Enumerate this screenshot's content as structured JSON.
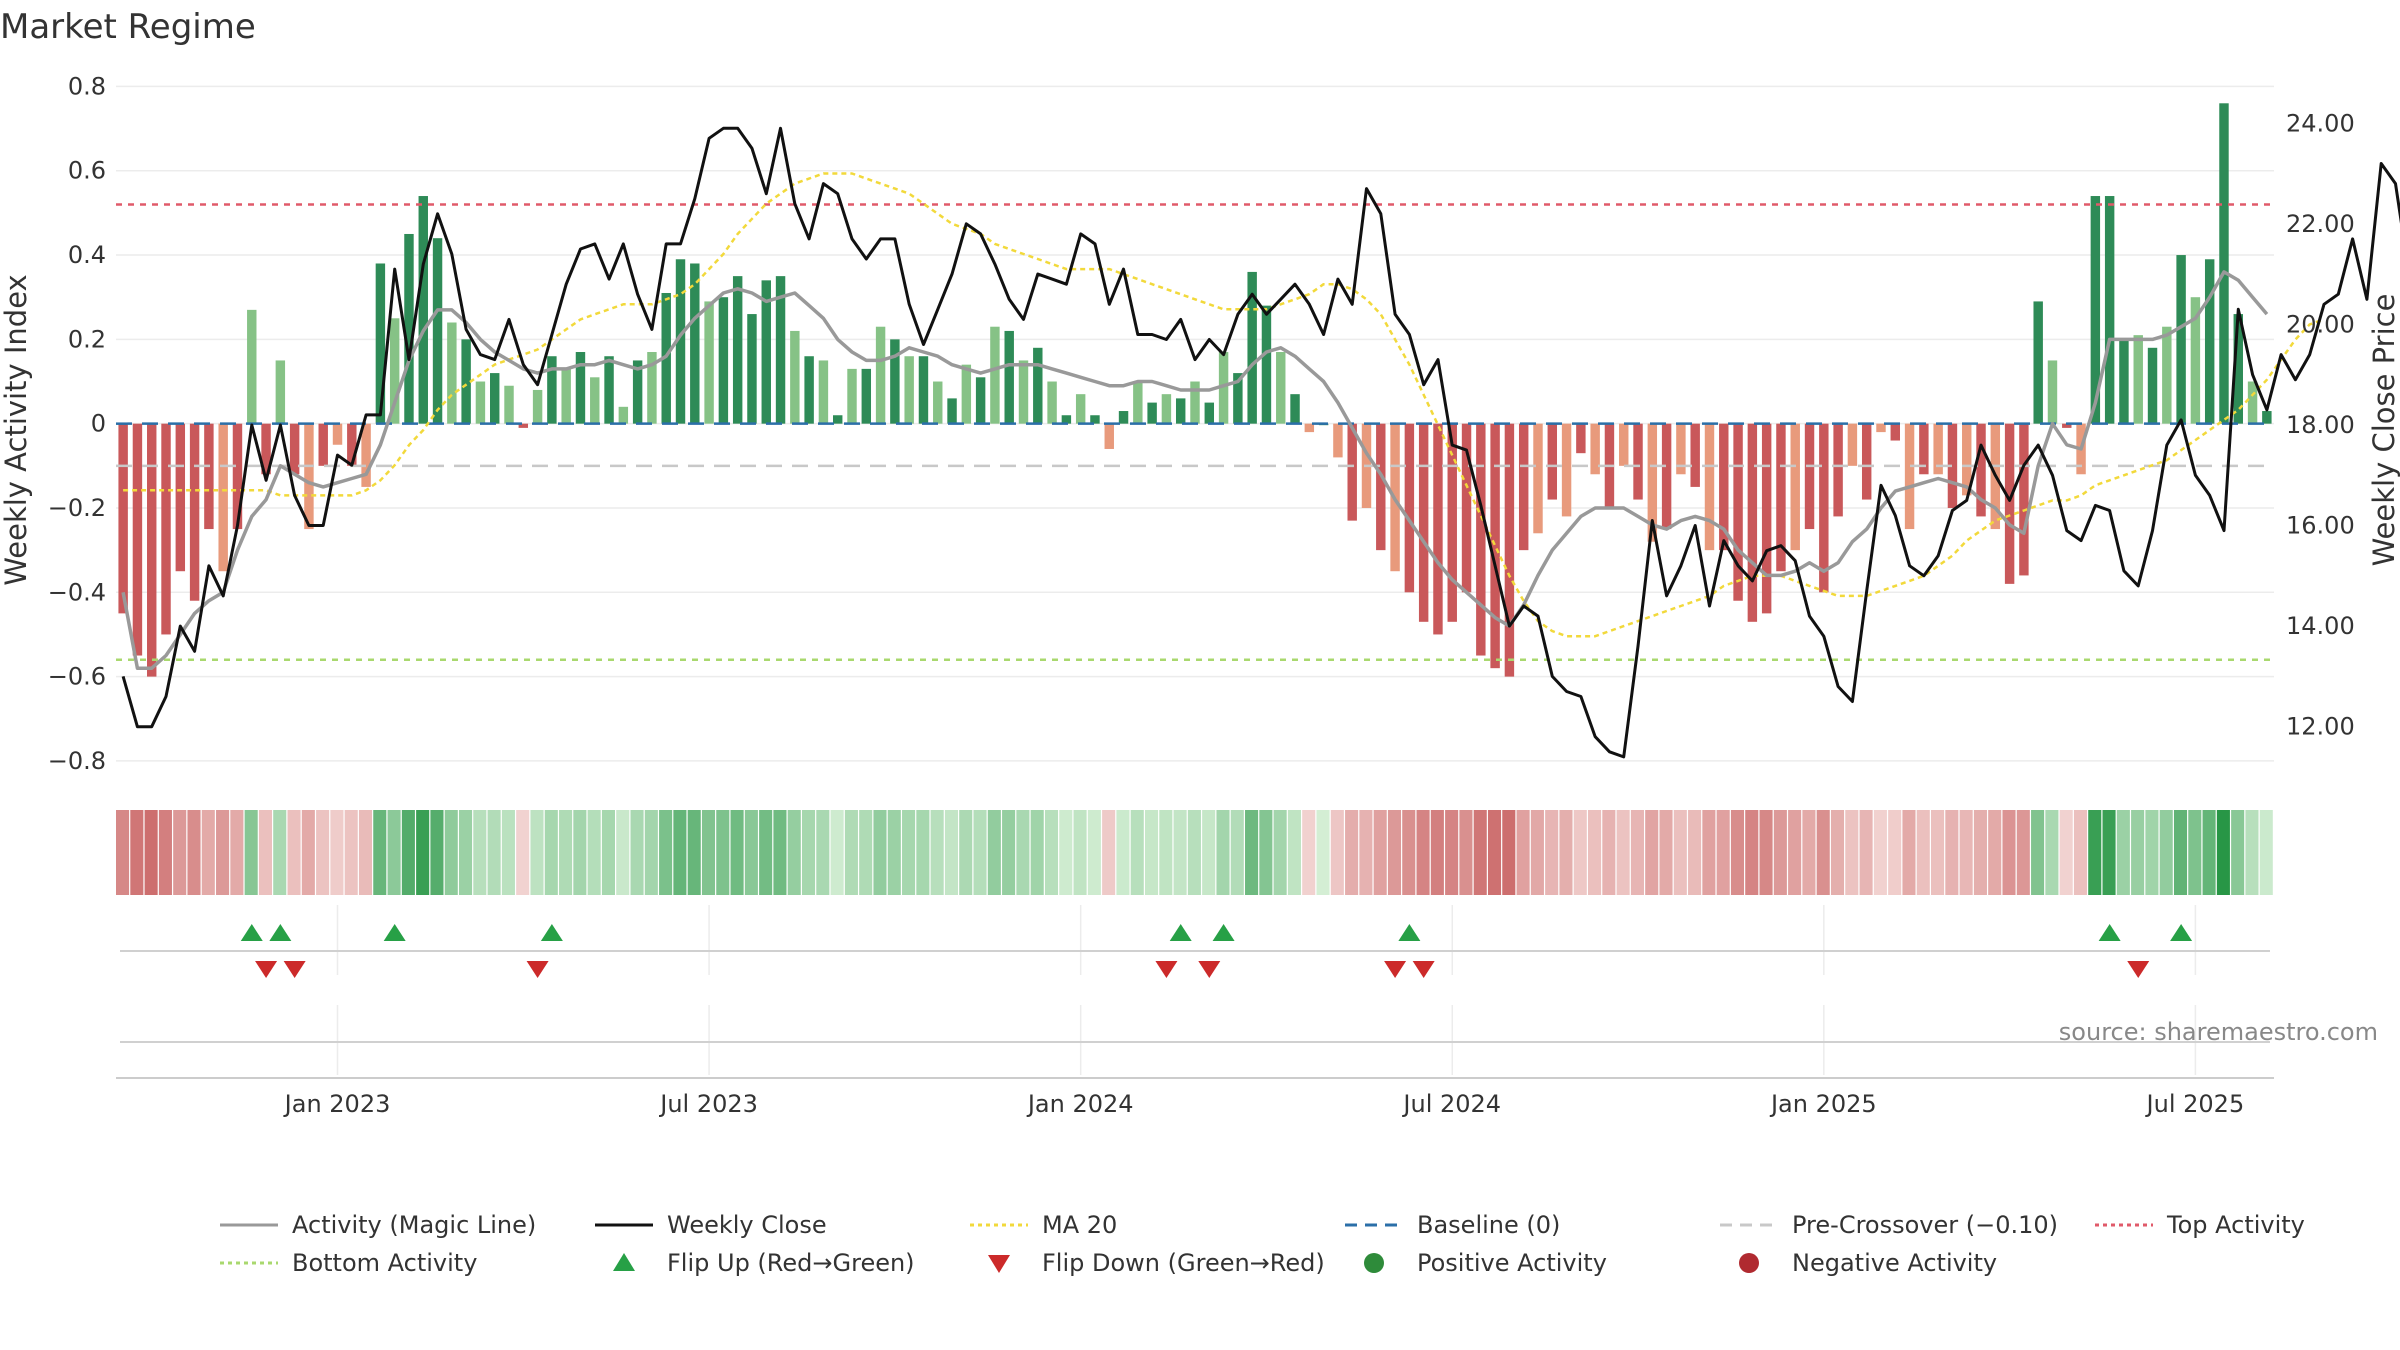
{
  "title": "Market Regime",
  "source": "source: sharemaestro.com",
  "colors": {
    "activity_line": "#999999",
    "close_line": "#111111",
    "ma20": "#f2d93b",
    "baseline": "#2b6fa8",
    "pre_crossover": "#c8c8c8",
    "top_activity": "#e05a6a",
    "bottom_activity": "#a9d86e",
    "pos_dark": "#2e8b57",
    "pos_light": "#86c286",
    "neg_dark": "#c9585a",
    "neg_light": "#e89a7c",
    "flip_up": "#27a046",
    "flip_down": "#cc2a2a",
    "positive_dot": "#2e8b3a",
    "negative_dot": "#b02a30",
    "grid": "#ececec"
  },
  "chart_data": {
    "type": "bar",
    "ylabel": "Weekly Activity Index",
    "y2label": "Weekly Close Price",
    "ylim": [
      -0.85,
      0.82
    ],
    "y2lim": [
      10.9,
      24.9
    ],
    "yticks": [
      {
        "v": 0.8,
        "label": "0.8"
      },
      {
        "v": 0.6,
        "label": "0.6"
      },
      {
        "v": 0.4,
        "label": "0.4"
      },
      {
        "v": 0.2,
        "label": "0.2"
      },
      {
        "v": 0,
        "label": "0"
      },
      {
        "v": -0.2,
        "label": "−0.2"
      },
      {
        "v": -0.4,
        "label": "−0.4"
      },
      {
        "v": -0.6,
        "label": "−0.6"
      },
      {
        "v": -0.8,
        "label": "−0.8"
      }
    ],
    "y2ticks": [
      {
        "v": 24,
        "label": "24.00"
      },
      {
        "v": 22,
        "label": "22.00"
      },
      {
        "v": 20,
        "label": "20.00"
      },
      {
        "v": 18,
        "label": "18.00"
      },
      {
        "v": 16,
        "label": "16.00"
      },
      {
        "v": 14,
        "label": "14.00"
      },
      {
        "v": 12,
        "label": "12.00"
      }
    ],
    "xticks": [
      "Jan 2023",
      "Jul 2023",
      "Jan 2024",
      "Jul 2024",
      "Jan 2025",
      "Jul 2025"
    ],
    "xtick_weeks": [
      15,
      41,
      67,
      93,
      119,
      145
    ],
    "activity": [
      -0.45,
      -0.55,
      -0.6,
      -0.5,
      -0.35,
      -0.42,
      -0.25,
      -0.35,
      -0.25,
      0.27,
      -0.12,
      0.15,
      -0.12,
      -0.25,
      -0.1,
      -0.05,
      -0.1,
      -0.15,
      0.38,
      0.25,
      0.45,
      0.54,
      0.44,
      0.24,
      0.2,
      0.1,
      0.12,
      0.09,
      -0.01,
      0.08,
      0.16,
      0.13,
      0.17,
      0.11,
      0.16,
      0.04,
      0.15,
      0.17,
      0.31,
      0.39,
      0.38,
      0.29,
      0.3,
      0.35,
      0.26,
      0.34,
      0.35,
      0.22,
      0.16,
      0.15,
      0.02,
      0.13,
      0.13,
      0.23,
      0.2,
      0.16,
      0.16,
      0.1,
      0.06,
      0.14,
      0.11,
      0.23,
      0.22,
      0.15,
      0.18,
      0.1,
      0.02,
      0.07,
      0.02,
      -0.06,
      0.03,
      0.1,
      0.05,
      0.07,
      0.06,
      0.1,
      0.05,
      0.17,
      0.12,
      0.36,
      0.28,
      0.17,
      0.07,
      -0.02,
      0.0,
      -0.08,
      -0.23,
      -0.2,
      -0.3,
      -0.35,
      -0.4,
      -0.47,
      -0.5,
      -0.47,
      -0.4,
      -0.55,
      -0.58,
      -0.6,
      -0.3,
      -0.26,
      -0.18,
      -0.22,
      -0.07,
      -0.12,
      -0.2,
      -0.1,
      -0.18,
      -0.28,
      -0.25,
      -0.12,
      -0.15,
      -0.3,
      -0.3,
      -0.42,
      -0.47,
      -0.45,
      -0.35,
      -0.3,
      -0.25,
      -0.4,
      -0.22,
      -0.1,
      -0.18,
      -0.02,
      -0.04,
      -0.25,
      -0.12,
      -0.12,
      -0.2,
      -0.17,
      -0.22,
      -0.25,
      -0.38,
      -0.36,
      0.29,
      0.15,
      -0.01,
      -0.12,
      0.54,
      0.54,
      0.2,
      0.21,
      0.18,
      0.23,
      0.4,
      0.3,
      0.39,
      0.76,
      0.26,
      0.1,
      0.03
    ],
    "magic_line": [
      -0.4,
      -0.58,
      -0.58,
      -0.55,
      -0.5,
      -0.45,
      -0.42,
      -0.4,
      -0.3,
      -0.22,
      -0.18,
      -0.1,
      -0.12,
      -0.14,
      -0.15,
      -0.14,
      -0.13,
      -0.12,
      -0.05,
      0.05,
      0.15,
      0.22,
      0.27,
      0.27,
      0.24,
      0.2,
      0.17,
      0.15,
      0.13,
      0.12,
      0.13,
      0.13,
      0.14,
      0.14,
      0.15,
      0.14,
      0.13,
      0.14,
      0.16,
      0.21,
      0.25,
      0.28,
      0.31,
      0.32,
      0.31,
      0.29,
      0.3,
      0.31,
      0.28,
      0.25,
      0.2,
      0.17,
      0.15,
      0.15,
      0.16,
      0.18,
      0.17,
      0.16,
      0.14,
      0.13,
      0.12,
      0.13,
      0.14,
      0.14,
      0.14,
      0.13,
      0.12,
      0.11,
      0.1,
      0.09,
      0.09,
      0.1,
      0.1,
      0.09,
      0.08,
      0.08,
      0.08,
      0.09,
      0.1,
      0.14,
      0.17,
      0.18,
      0.16,
      0.13,
      0.1,
      0.05,
      -0.01,
      -0.07,
      -0.12,
      -0.18,
      -0.23,
      -0.28,
      -0.33,
      -0.37,
      -0.4,
      -0.43,
      -0.46,
      -0.48,
      -0.43,
      -0.36,
      -0.3,
      -0.26,
      -0.22,
      -0.2,
      -0.2,
      -0.2,
      -0.22,
      -0.24,
      -0.25,
      -0.23,
      -0.22,
      -0.23,
      -0.25,
      -0.3,
      -0.33,
      -0.36,
      -0.36,
      -0.35,
      -0.33,
      -0.35,
      -0.33,
      -0.28,
      -0.25,
      -0.2,
      -0.16,
      -0.15,
      -0.14,
      -0.13,
      -0.14,
      -0.15,
      -0.18,
      -0.2,
      -0.24,
      -0.26,
      -0.1,
      0.0,
      -0.05,
      -0.06,
      0.05,
      0.2,
      0.2,
      0.2,
      0.2,
      0.21,
      0.23,
      0.25,
      0.3,
      0.36,
      0.34,
      0.3,
      0.26
    ],
    "close": [
      13,
      12,
      12,
      12.6,
      14,
      13.5,
      15.2,
      14.6,
      16,
      18,
      16.9,
      18,
      16.6,
      16,
      16,
      17.4,
      17.2,
      18.2,
      18.2,
      21.1,
      19.3,
      21.2,
      22.2,
      21.4,
      19.9,
      19.4,
      19.3,
      20.1,
      19.2,
      18.8,
      19.8,
      20.8,
      21.5,
      21.6,
      20.9,
      21.6,
      20.6,
      19.9,
      21.6,
      21.6,
      22.5,
      23.7,
      23.9,
      23.9,
      23.5,
      22.6,
      23.9,
      22.4,
      21.7,
      22.8,
      22.6,
      21.7,
      21.3,
      21.7,
      21.7,
      20.4,
      19.6,
      20.3,
      21,
      22,
      21.8,
      21.2,
      20.5,
      20.1,
      21,
      20.9,
      20.8,
      21.8,
      21.6,
      20.4,
      21.1,
      19.8,
      19.8,
      19.7,
      20.1,
      19.3,
      19.7,
      19.4,
      20.2,
      20.6,
      20.2,
      20.5,
      20.8,
      20.4,
      19.8,
      20.9,
      20.4,
      22.7,
      22.2,
      20.2,
      19.8,
      18.8,
      19.3,
      17.6,
      17.5,
      16.4,
      15.2,
      14,
      14.4,
      14.2,
      13,
      12.7,
      12.6,
      11.8,
      11.5,
      11.4,
      13.6,
      16.1,
      14.6,
      15.2,
      16,
      14.4,
      15.7,
      15.2,
      14.9,
      15.5,
      15.6,
      15.3,
      14.2,
      13.8,
      12.8,
      12.5,
      14.7,
      16.8,
      16.2,
      15.2,
      15,
      15.4,
      16.3,
      16.5,
      17.6,
      17,
      16.5,
      17.2,
      17.6,
      17,
      15.9,
      15.7,
      16.4,
      16.3,
      15.1,
      14.8,
      15.9,
      17.6,
      18.1,
      17,
      16.6,
      15.9,
      20.3,
      19,
      18.3,
      19.4,
      18.9,
      19.4,
      20.4,
      20.6,
      21.7,
      20.5,
      23.2,
      22.8,
      20.9,
      20.2
    ],
    "ma20": [
      16.7,
      16.7,
      16.7,
      16.7,
      16.7,
      16.7,
      16.7,
      16.7,
      16.7,
      16.7,
      16.7,
      16.6,
      16.6,
      16.6,
      16.6,
      16.6,
      16.6,
      16.7,
      16.9,
      17.2,
      17.6,
      17.9,
      18.3,
      18.6,
      18.8,
      19,
      19.2,
      19.3,
      19.4,
      19.5,
      19.7,
      19.9,
      20.1,
      20.2,
      20.3,
      20.4,
      20.4,
      20.4,
      20.5,
      20.6,
      20.8,
      21.1,
      21.4,
      21.8,
      22.1,
      22.4,
      22.6,
      22.8,
      22.9,
      23,
      23,
      23,
      22.9,
      22.8,
      22.7,
      22.6,
      22.4,
      22.2,
      22,
      21.9,
      21.8,
      21.6,
      21.5,
      21.4,
      21.3,
      21.2,
      21.1,
      21.1,
      21.1,
      21.1,
      21,
      20.9,
      20.8,
      20.7,
      20.6,
      20.5,
      20.4,
      20.3,
      20.3,
      20.3,
      20.3,
      20.4,
      20.5,
      20.6,
      20.8,
      20.8,
      20.7,
      20.5,
      20.2,
      19.7,
      19.2,
      18.6,
      18,
      17.4,
      16.8,
      16.2,
      15.6,
      15,
      14.5,
      14.1,
      13.9,
      13.8,
      13.8,
      13.8,
      13.9,
      14,
      14.1,
      14.2,
      14.3,
      14.4,
      14.5,
      14.6,
      14.8,
      14.9,
      15,
      15,
      15,
      14.9,
      14.8,
      14.7,
      14.6,
      14.6,
      14.6,
      14.7,
      14.8,
      14.9,
      15,
      15.2,
      15.4,
      15.7,
      15.9,
      16.1,
      16.2,
      16.3,
      16.4,
      16.5,
      16.5,
      16.6,
      16.8,
      16.9,
      17,
      17.1,
      17.2,
      17.3,
      17.5,
      17.7,
      17.9,
      18.1,
      18.3,
      18.6,
      18.9,
      19.3,
      19.7,
      20,
      20.1
    ],
    "top_activity": 0.52,
    "bottom_activity": -0.56,
    "pre_crossover": -0.1,
    "flip_up_weeks": [
      9,
      11,
      19,
      30,
      74,
      77,
      90,
      139,
      144
    ],
    "flip_down_weeks": [
      10,
      12,
      29,
      73,
      76,
      89,
      91,
      141
    ]
  },
  "legend": [
    {
      "label": "Activity (Magic Line)",
      "kind": "line",
      "color_key": "activity_line",
      "dash": ""
    },
    {
      "label": "Weekly Close",
      "kind": "line",
      "color_key": "close_line",
      "dash": ""
    },
    {
      "label": "MA 20",
      "kind": "line",
      "color_key": "ma20",
      "dash": "4,4"
    },
    {
      "label": "Baseline (0)",
      "kind": "line",
      "color_key": "baseline",
      "dash": "12,8"
    },
    {
      "label": "Pre-Crossover (−0.10)",
      "kind": "line",
      "color_key": "pre_crossover",
      "dash": "12,8"
    },
    {
      "label": "Top Activity",
      "kind": "line",
      "color_key": "top_activity",
      "dash": "4,4"
    },
    {
      "label": "Bottom Activity",
      "kind": "line",
      "color_key": "bottom_activity",
      "dash": "4,4"
    },
    {
      "label": "Flip Up (Red→Green)",
      "kind": "tri-up",
      "color_key": "flip_up",
      "dash": ""
    },
    {
      "label": "Flip Down (Green→Red)",
      "kind": "tri-down",
      "color_key": "flip_down",
      "dash": ""
    },
    {
      "label": "Positive Activity",
      "kind": "dot",
      "color_key": "positive_dot",
      "dash": ""
    },
    {
      "label": "Negative Activity",
      "kind": "dot",
      "color_key": "negative_dot",
      "dash": ""
    }
  ]
}
